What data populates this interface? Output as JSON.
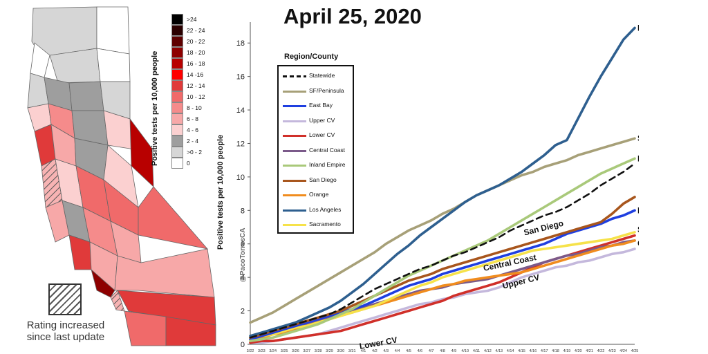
{
  "title": "April 25, 2020",
  "credit": "@PacoTorresCA",
  "map": {
    "scale_title": "Positive tests per 10,000 people",
    "scale": [
      {
        "label": ">24",
        "color": "#000000"
      },
      {
        "label": "22 - 24",
        "color": "#2b0000"
      },
      {
        "label": "20 - 22",
        "color": "#5e0000"
      },
      {
        "label": "18 - 20",
        "color": "#8e0000"
      },
      {
        "label": "16 - 18",
        "color": "#b80000"
      },
      {
        "label": "14 -16",
        "color": "#ff0000"
      },
      {
        "label": "12 - 14",
        "color": "#e03a3a"
      },
      {
        "label": "10 - 12",
        "color": "#f06a6a"
      },
      {
        "label": "8 - 10",
        "color": "#f58b8b"
      },
      {
        "label": "6 - 8",
        "color": "#f7a8a8"
      },
      {
        "label": "4 - 6",
        "color": "#fbd0d0"
      },
      {
        "label": "2 - 4",
        "color": "#9e9e9e"
      },
      {
        ">0 - 2": "",
        "label": ">0 - 2",
        "color": "#d6d6d6"
      },
      {
        "label": "0",
        "color": "#ffffff"
      }
    ],
    "hatch_label": "Rating increased since last update"
  },
  "legend": {
    "title": "Region/County",
    "items": [
      {
        "name": "Statewide",
        "color": "#111111",
        "dashed": true
      },
      {
        "name": "SF/Peninsula",
        "color": "#a7a078"
      },
      {
        "name": "East Bay",
        "color": "#1f3fe0"
      },
      {
        "name": "Upper CV",
        "color": "#c4b8dc"
      },
      {
        "name": "Lower CV",
        "color": "#d0302a"
      },
      {
        "name": "Central Coast",
        "color": "#7b5a8a"
      },
      {
        "name": "Inland Empire",
        "color": "#a9c97a"
      },
      {
        "name": "San Diego",
        "color": "#a8561d"
      },
      {
        "name": "Orange",
        "color": "#f08c1e"
      },
      {
        "name": "Los Angeles",
        "color": "#2e5f8f"
      },
      {
        "name": "Sacramento",
        "color": "#f6e24a"
      }
    ]
  },
  "chart_data": {
    "type": "line",
    "ylabel": "Positive tests per 10,000 people",
    "xlabel": "",
    "ylim": [
      0,
      19
    ],
    "yticks": [
      0,
      2,
      4,
      6,
      8,
      10,
      12,
      14,
      16,
      18
    ],
    "x": [
      "3/22",
      "3/23",
      "3/24",
      "3/25",
      "3/26",
      "3/27",
      "3/28",
      "3/29",
      "3/30",
      "3/31",
      "4/1",
      "4/2",
      "4/3",
      "4/4",
      "4/5",
      "4/6",
      "4/7",
      "4/8",
      "4/9",
      "4/10",
      "4/11",
      "4/12",
      "4/13",
      "4/14",
      "4/15",
      "4/16",
      "4/17",
      "4/18",
      "4/19",
      "4/20",
      "4/21",
      "4/22",
      "4/23",
      "4/24",
      "4/25"
    ],
    "series": [
      {
        "name": "Statewide",
        "values": [
          0.4,
          0.6,
          0.8,
          1.0,
          1.2,
          1.4,
          1.6,
          1.8,
          2.1,
          2.5,
          2.9,
          3.3,
          3.6,
          3.9,
          4.2,
          4.5,
          4.7,
          5.0,
          5.3,
          5.5,
          5.8,
          6.1,
          6.4,
          6.8,
          7.1,
          7.4,
          7.7,
          7.9,
          8.2,
          8.6,
          9.0,
          9.5,
          9.9,
          10.3,
          10.8
        ]
      },
      {
        "name": "SF/Peninsula",
        "values": [
          1.3,
          1.6,
          1.9,
          2.3,
          2.7,
          3.1,
          3.5,
          3.9,
          4.3,
          4.7,
          5.1,
          5.5,
          6.0,
          6.4,
          6.8,
          7.1,
          7.4,
          7.8,
          8.1,
          8.5,
          8.9,
          9.2,
          9.5,
          9.8,
          10.1,
          10.3,
          10.6,
          10.8,
          11.0,
          11.3,
          11.5,
          11.7,
          11.9,
          12.1,
          12.3
        ]
      },
      {
        "name": "East Bay",
        "values": [
          0.3,
          0.5,
          0.7,
          0.9,
          1.1,
          1.3,
          1.5,
          1.7,
          1.9,
          2.1,
          2.3,
          2.6,
          2.9,
          3.2,
          3.5,
          3.7,
          3.9,
          4.2,
          4.4,
          4.6,
          4.8,
          5.0,
          5.2,
          5.4,
          5.6,
          5.8,
          6.0,
          6.3,
          6.6,
          6.8,
          7.0,
          7.2,
          7.5,
          7.7,
          8.0
        ]
      },
      {
        "name": "Upper CV",
        "values": [
          0.1,
          0.1,
          0.2,
          0.3,
          0.4,
          0.5,
          0.6,
          0.8,
          1.0,
          1.2,
          1.4,
          1.6,
          1.8,
          2.0,
          2.2,
          2.4,
          2.5,
          2.7,
          2.8,
          3.0,
          3.1,
          3.2,
          3.4,
          3.7,
          4.0,
          4.2,
          4.4,
          4.6,
          4.7,
          4.9,
          5.0,
          5.2,
          5.4,
          5.5,
          5.7
        ]
      },
      {
        "name": "Lower CV",
        "values": [
          0.1,
          0.2,
          0.2,
          0.3,
          0.4,
          0.5,
          0.6,
          0.7,
          0.8,
          1.0,
          1.2,
          1.4,
          1.6,
          1.8,
          2.0,
          2.2,
          2.4,
          2.6,
          2.9,
          3.1,
          3.3,
          3.5,
          3.7,
          4.0,
          4.3,
          4.6,
          4.9,
          5.1,
          5.3,
          5.5,
          5.7,
          5.9,
          6.1,
          6.3,
          6.5
        ]
      },
      {
        "name": "Central Coast",
        "values": [
          0.3,
          0.5,
          0.6,
          0.8,
          1.0,
          1.2,
          1.4,
          1.6,
          1.8,
          2.0,
          2.2,
          2.4,
          2.6,
          2.8,
          3.0,
          3.2,
          3.3,
          3.4,
          3.6,
          3.7,
          3.8,
          3.9,
          4.1,
          4.3,
          4.5,
          4.7,
          4.9,
          5.1,
          5.3,
          5.4,
          5.6,
          5.8,
          5.9,
          6.1,
          6.2
        ]
      },
      {
        "name": "Inland Empire",
        "values": [
          0.2,
          0.3,
          0.4,
          0.6,
          0.8,
          1.0,
          1.2,
          1.5,
          1.8,
          2.1,
          2.5,
          2.9,
          3.3,
          3.7,
          4.1,
          4.4,
          4.7,
          5.0,
          5.3,
          5.6,
          5.9,
          6.2,
          6.6,
          7.0,
          7.4,
          7.8,
          8.2,
          8.6,
          9.0,
          9.4,
          9.8,
          10.2,
          10.5,
          10.8,
          11.1
        ]
      },
      {
        "name": "San Diego",
        "values": [
          0.4,
          0.6,
          0.8,
          1.0,
          1.2,
          1.4,
          1.6,
          1.8,
          2.0,
          2.3,
          2.6,
          2.9,
          3.2,
          3.5,
          3.8,
          4.0,
          4.2,
          4.5,
          4.7,
          4.9,
          5.1,
          5.3,
          5.5,
          5.7,
          5.9,
          6.1,
          6.3,
          6.5,
          6.7,
          6.9,
          7.1,
          7.3,
          7.8,
          8.4,
          8.8
        ]
      },
      {
        "name": "Orange",
        "values": [
          0.3,
          0.4,
          0.6,
          0.7,
          0.9,
          1.1,
          1.3,
          1.5,
          1.7,
          1.9,
          2.1,
          2.3,
          2.5,
          2.7,
          2.9,
          3.1,
          3.3,
          3.5,
          3.6,
          3.8,
          3.9,
          4.0,
          4.1,
          4.2,
          4.3,
          4.5,
          4.7,
          4.9,
          5.1,
          5.3,
          5.5,
          5.7,
          5.9,
          6.0,
          6.2
        ]
      },
      {
        "name": "Los Angeles",
        "values": [
          0.5,
          0.7,
          0.9,
          1.1,
          1.3,
          1.6,
          1.9,
          2.2,
          2.6,
          3.1,
          3.6,
          4.2,
          4.8,
          5.4,
          5.9,
          6.5,
          7.0,
          7.5,
          8.0,
          8.5,
          8.9,
          9.2,
          9.5,
          9.9,
          10.3,
          10.8,
          11.3,
          11.9,
          12.2,
          13.5,
          14.8,
          16.0,
          17.1,
          18.2,
          18.9
        ]
      },
      {
        "name": "Sacramento",
        "values": [
          0.4,
          0.5,
          0.6,
          0.8,
          1.0,
          1.1,
          1.3,
          1.5,
          1.7,
          1.9,
          2.1,
          2.3,
          2.6,
          2.9,
          3.2,
          3.5,
          3.7,
          4.0,
          4.2,
          4.4,
          4.6,
          4.8,
          5.0,
          5.2,
          5.4,
          5.6,
          5.7,
          5.8,
          5.9,
          6.0,
          6.1,
          6.2,
          6.3,
          6.5,
          6.7
        ]
      }
    ],
    "line_labels": [
      {
        "text": "Los Angeles",
        "series": "Los Angeles"
      },
      {
        "text": "SF/Peninsula",
        "series": "SF/Peninsula"
      },
      {
        "text": "Inland Empire",
        "series": "Inland Empire"
      },
      {
        "text": "East Bay",
        "series": "East Bay"
      },
      {
        "text": "Sacramento",
        "series": "Sacramento"
      },
      {
        "text": "Orange",
        "series": "Orange"
      },
      {
        "text": "San Diego",
        "series": "San Diego"
      },
      {
        "text": "Central Coast",
        "series": "Central Coast"
      },
      {
        "text": "Upper CV",
        "series": "Upper CV"
      },
      {
        "text": "Lower CV",
        "series": "Lower CV"
      }
    ]
  }
}
